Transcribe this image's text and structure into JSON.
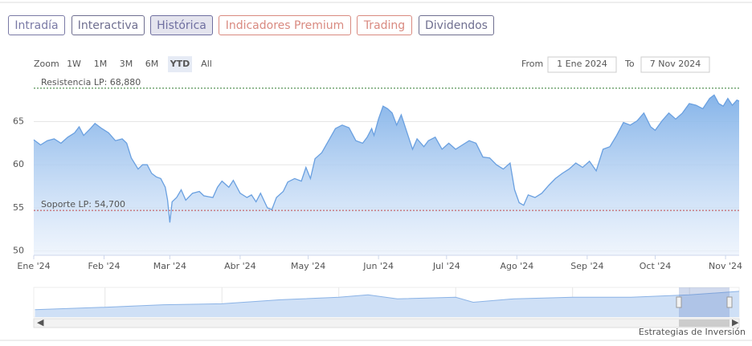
{
  "tabs": [
    {
      "label": "Intradía",
      "color": "#7a7aa6"
    },
    {
      "label": "Interactiva",
      "color": "#6f6f90"
    },
    {
      "label": "Histórica",
      "color": "#6f6fa0"
    },
    {
      "label": "Indicadores Premium",
      "color": "#d98a80"
    },
    {
      "label": "Trading",
      "color": "#d98a80"
    },
    {
      "label": "Dividendos",
      "color": "#6f6f90"
    }
  ],
  "active_tab": 2,
  "zoom_label": "Zoom",
  "zoom_buttons": [
    "1W",
    "1M",
    "3M",
    "6M",
    "YTD",
    "All"
  ],
  "active_zoom": 4,
  "range": {
    "from_label": "From",
    "from": "1 Ene 2024",
    "to_label": "To",
    "to": "7 Nov 2024"
  },
  "chart_data": {
    "type": "area",
    "color": "#6aa0e0",
    "grid": true,
    "x": [
      0,
      3,
      6,
      9,
      12,
      15,
      18,
      20,
      22,
      25,
      27,
      30,
      33,
      36,
      39,
      41,
      43,
      46,
      48,
      50,
      52,
      54,
      56,
      58,
      59,
      60,
      61,
      63,
      65,
      67,
      70,
      73,
      75,
      77,
      79,
      81,
      83,
      86,
      88,
      91,
      94,
      96,
      98,
      100,
      103,
      105,
      107,
      110,
      112,
      115,
      118,
      120,
      122,
      124,
      127,
      130,
      133,
      136,
      139,
      142,
      145,
      147,
      149,
      150,
      152,
      154,
      156,
      158,
      160,
      162,
      165,
      167,
      169,
      172,
      174,
      177,
      180,
      183,
      186,
      189,
      192,
      195,
      198,
      201,
      204,
      207,
      210,
      212,
      214,
      216,
      218,
      221,
      224,
      227,
      230,
      233,
      236,
      239,
      242,
      245,
      248,
      251,
      254,
      257,
      260,
      263,
      266,
      269,
      272,
      274,
      277,
      280,
      283,
      286,
      289,
      292,
      295,
      298,
      300,
      302,
      304,
      306,
      308,
      310,
      311
    ],
    "values": [
      62.9,
      62.3,
      62.8,
      63,
      62.5,
      63.2,
      63.7,
      64.4,
      63.4,
      64.2,
      64.8,
      64.2,
      63.7,
      62.8,
      63,
      62.5,
      60.8,
      59.5,
      60,
      60,
      59,
      58.6,
      58.4,
      57.4,
      55.9,
      53.3,
      55.7,
      56.2,
      57.1,
      55.9,
      56.7,
      56.9,
      56.4,
      56.3,
      56.2,
      57.4,
      58.1,
      57.4,
      58.2,
      56.7,
      56.2,
      56.5,
      55.7,
      56.7,
      55,
      54.8,
      56.2,
      56.9,
      58,
      58.4,
      58.1,
      59.7,
      58.4,
      60.7,
      61.4,
      62.8,
      64.2,
      64.6,
      64.3,
      62.8,
      62.5,
      63.2,
      64.2,
      63.4,
      65.3,
      66.8,
      66.5,
      66,
      64.6,
      65.8,
      63.4,
      61.8,
      63,
      62.1,
      62.8,
      63.2,
      61.8,
      62.5,
      61.8,
      62.3,
      62.8,
      62.5,
      60.9,
      60.8,
      60,
      59.5,
      60.2,
      57.1,
      55.6,
      55.3,
      56.5,
      56.2,
      56.7,
      57.6,
      58.4,
      59,
      59.5,
      60.2,
      59.7,
      60.4,
      59.3,
      61.8,
      62.1,
      63.4,
      64.9,
      64.6,
      65.1,
      66,
      64.4,
      64,
      65.1,
      66,
      65.3,
      66,
      67.1,
      66.9,
      66.5,
      67.7,
      68.1,
      67.1,
      66.8,
      67.7,
      66.9,
      67.5,
      67.4
    ],
    "xlim": [
      0,
      311
    ],
    "xticks": [
      {
        "value": 0,
        "label": "Ene '24"
      },
      {
        "value": 31,
        "label": "Feb '24"
      },
      {
        "value": 60,
        "label": "Mar '24"
      },
      {
        "value": 91,
        "label": "Abr '24"
      },
      {
        "value": 121,
        "label": "May '24"
      },
      {
        "value": 152,
        "label": "Jun '24"
      },
      {
        "value": 182,
        "label": "Jul '24"
      },
      {
        "value": 213,
        "label": "Ago '24"
      },
      {
        "value": 244,
        "label": "Sep '24"
      },
      {
        "value": 274,
        "label": "Oct '24"
      },
      {
        "value": 305,
        "label": "Nov '24"
      }
    ],
    "ylim": [
      49.5,
      69.8
    ],
    "yticks": [
      50,
      55,
      60,
      65
    ],
    "plot_lines": [
      {
        "label": "Resistencia LP: 68,880",
        "value": 68.88,
        "color": "#2f7a2f"
      },
      {
        "label": "Soporte LP: 54,700",
        "value": 54.7,
        "color": "#c04848"
      }
    ],
    "navigator": {
      "x": [
        2012.8,
        2014,
        2015,
        2016,
        2017,
        2018,
        2018.5,
        2019,
        2020,
        2020.3,
        2021,
        2022,
        2023,
        2024,
        2024.85
      ],
      "values": [
        30,
        35,
        40,
        42,
        50,
        55,
        60,
        52,
        55,
        45,
        52,
        55,
        55,
        60,
        67
      ],
      "xlim": [
        2012.78,
        2024.85
      ],
      "ylim": [
        15,
        75
      ],
      "xticks": [
        2014,
        2016,
        2018,
        2020,
        2022,
        2024
      ]
    }
  },
  "credit": "Estrategias de Inversión"
}
